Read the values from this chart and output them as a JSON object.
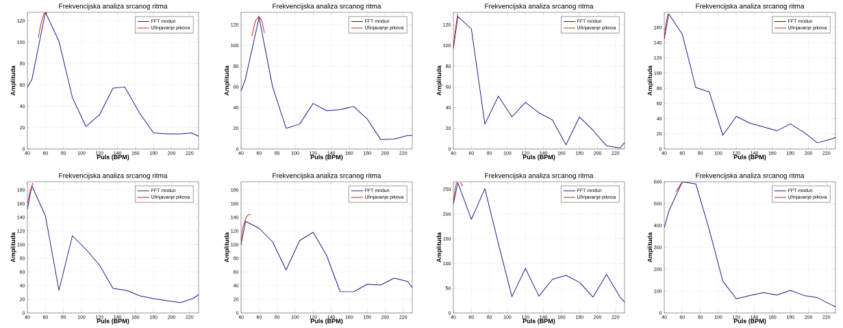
{
  "chart_data": [
    {
      "type": "line",
      "title": "Frekvencijska analiza srcanog ritma",
      "xlabel": "Puls (BPM)",
      "ylabel": "Amplituda",
      "xlim": [
        40,
        230
      ],
      "ylim": [
        0,
        128
      ],
      "xticks": [
        40,
        60,
        80,
        100,
        120,
        140,
        160,
        180,
        200,
        220
      ],
      "yticks": [
        0,
        20,
        40,
        60,
        80,
        100,
        120
      ],
      "grid": true,
      "legend": "top right",
      "series": [
        {
          "name": "FFT moduo",
          "color": "#1a1a8c",
          "x": [
            40,
            45,
            60,
            75,
            90,
            105,
            120,
            135,
            148,
            165,
            180,
            195,
            210,
            222,
            230
          ],
          "values": [
            58,
            65,
            128,
            101,
            48,
            21,
            32,
            57,
            58,
            33,
            15,
            14,
            14,
            15,
            12
          ]
        },
        {
          "name": "Ufinjavanje pikova",
          "color": "#cc2020",
          "x": [
            52,
            55,
            58,
            60,
            62
          ],
          "values": [
            104,
            117,
            126,
            128,
            127
          ]
        }
      ]
    },
    {
      "type": "line",
      "title": "Frekvencijska analiza srcanog ritma",
      "xlabel": "Puls (BPM)",
      "ylabel": "Amplituda",
      "xlim": [
        40,
        230
      ],
      "ylim": [
        0,
        132
      ],
      "xticks": [
        40,
        60,
        80,
        100,
        120,
        140,
        160,
        180,
        200,
        220
      ],
      "yticks": [
        0,
        20,
        40,
        60,
        80,
        100,
        120
      ],
      "grid": true,
      "legend": "top right",
      "series": [
        {
          "name": "FFT moduo",
          "color": "#1a1a8c",
          "x": [
            40,
            45,
            60,
            75,
            90,
            105,
            120,
            135,
            150,
            165,
            180,
            195,
            210,
            225,
            230
          ],
          "values": [
            56,
            68,
            127,
            60,
            20,
            24,
            44,
            37,
            38,
            41,
            29,
            9,
            9.5,
            13,
            13
          ]
        },
        {
          "name": "Ufinjavanje pikova",
          "color": "#cc2020",
          "x": [
            52,
            56,
            60,
            63,
            66
          ],
          "values": [
            109,
            124,
            128,
            124,
            112
          ]
        }
      ]
    },
    {
      "type": "line",
      "title": "Frekvencijska analiza srcanog ritma",
      "xlabel": "Puls (BPM)",
      "ylabel": "Amplituda",
      "xlim": [
        40,
        230
      ],
      "ylim": [
        0,
        132
      ],
      "xticks": [
        40,
        60,
        80,
        100,
        120,
        140,
        160,
        180,
        200,
        220
      ],
      "yticks": [
        0,
        20,
        40,
        60,
        80,
        100,
        120
      ],
      "grid": true,
      "legend": "top right",
      "series": [
        {
          "name": "FFT moduo",
          "color": "#1a1a8c",
          "x": [
            40,
            45,
            60,
            75,
            90,
            105,
            120,
            135,
            150,
            165,
            180,
            195,
            210,
            225,
            230
          ],
          "values": [
            97,
            128,
            116,
            24,
            51,
            31,
            45,
            35,
            28,
            4,
            31,
            18,
            3,
            1,
            6
          ]
        },
        {
          "name": "Ufinjavanje pikova",
          "color": "#cc2020",
          "x": [
            40,
            42,
            44,
            45
          ],
          "values": [
            100,
            113,
            126,
            131
          ]
        }
      ]
    },
    {
      "type": "line",
      "title": "Frekvencijska analiza srcanog ritma",
      "xlabel": "Puls (BPM)",
      "ylabel": "Amplituda",
      "xlim": [
        40,
        230
      ],
      "ylim": [
        0,
        180
      ],
      "xticks": [
        40,
        60,
        80,
        100,
        120,
        140,
        160,
        180,
        200,
        220
      ],
      "yticks": [
        0,
        20,
        40,
        60,
        80,
        100,
        120,
        140,
        160
      ],
      "grid": true,
      "legend": "top right",
      "series": [
        {
          "name": "FFT moduo",
          "color": "#1a1a8c",
          "x": [
            40,
            45,
            60,
            75,
            90,
            105,
            120,
            135,
            150,
            165,
            180,
            195,
            210,
            225,
            230
          ],
          "values": [
            145,
            178,
            151,
            81,
            75,
            18,
            43,
            34,
            29,
            24,
            33,
            22,
            8,
            13,
            15
          ]
        },
        {
          "name": "Ufinjavanje pikova",
          "color": "#cc2020",
          "x": [
            40,
            42,
            44
          ],
          "values": [
            148,
            165,
            178
          ]
        }
      ]
    },
    {
      "type": "line",
      "title": "Frekvencijska analiza srcanog ritma",
      "xlabel": "Puls (BPM)",
      "ylabel": "Amplituda",
      "xlim": [
        40,
        230
      ],
      "ylim": [
        0,
        192
      ],
      "xticks": [
        40,
        60,
        80,
        100,
        120,
        140,
        160,
        180,
        200,
        220
      ],
      "yticks": [
        0,
        20,
        40,
        60,
        80,
        100,
        120,
        140,
        160,
        180
      ],
      "grid": true,
      "legend": "top right",
      "series": [
        {
          "name": "FFT moduo",
          "color": "#1a1a8c",
          "x": [
            40,
            45,
            60,
            75,
            90,
            105,
            120,
            135,
            150,
            165,
            180,
            195,
            210,
            225,
            230
          ],
          "values": [
            152,
            186,
            142,
            33,
            113,
            93,
            70,
            36,
            33,
            25,
            21,
            18,
            15,
            22,
            27
          ]
        },
        {
          "name": "Ufinjavanje pikova",
          "color": "#cc2020",
          "x": [
            40,
            43,
            46
          ],
          "values": [
            160,
            178,
            190
          ]
        }
      ]
    },
    {
      "type": "line",
      "title": "Frekvencijska analiza srcanog ritma",
      "xlabel": "Puls (BPM)",
      "ylabel": "Amplituda",
      "xlim": [
        40,
        230
      ],
      "ylim": [
        0,
        192
      ],
      "xticks": [
        40,
        60,
        80,
        100,
        120,
        140,
        160,
        180,
        200,
        220
      ],
      "yticks": [
        0,
        20,
        40,
        60,
        80,
        100,
        120,
        140,
        160,
        180
      ],
      "grid": true,
      "legend": "top right",
      "series": [
        {
          "name": "FFT moduo",
          "color": "#1a1a8c",
          "x": [
            40,
            45,
            60,
            75,
            90,
            105,
            120,
            135,
            150,
            165,
            180,
            195,
            210,
            225,
            230
          ],
          "values": [
            100,
            134,
            124,
            104,
            63,
            106,
            118,
            84,
            31,
            31,
            42,
            41,
            51,
            46,
            37
          ]
        },
        {
          "name": "Ufinjavanje pikova",
          "color": "#cc2020",
          "x": [
            40,
            42,
            45,
            48,
            51
          ],
          "values": [
            105,
            125,
            138,
            144,
            144
          ]
        }
      ]
    },
    {
      "type": "line",
      "title": "Frekvencijska analiza srcanog ritma",
      "xlabel": "Puls (BPM)",
      "ylabel": "Amplituda",
      "xlim": [
        40,
        230
      ],
      "ylim": [
        0,
        265
      ],
      "xticks": [
        40,
        60,
        80,
        100,
        120,
        140,
        160,
        180,
        200,
        220
      ],
      "yticks": [
        0,
        50,
        100,
        150,
        200,
        250
      ],
      "grid": true,
      "legend": "top right",
      "series": [
        {
          "name": "FFT moduo",
          "color": "#1a1a8c",
          "x": [
            40,
            45,
            60,
            75,
            90,
            105,
            120,
            135,
            150,
            165,
            180,
            195,
            210,
            225,
            230
          ],
          "values": [
            220,
            263,
            189,
            251,
            140,
            33,
            90,
            34,
            68,
            76,
            62,
            32,
            78,
            32,
            22
          ]
        },
        {
          "name": "Ufinjavanje pikova",
          "color": "#cc2020",
          "x": [
            40,
            42,
            43.5,
            46,
            48,
            50
          ],
          "values": [
            225,
            250,
            264,
            null,
            264,
            256
          ]
        }
      ]
    },
    {
      "type": "line",
      "title": "Frekvencijska analiza srcanog ritma",
      "xlabel": "Puls (BPM)",
      "ylabel": "Amplituda",
      "xlim": [
        40,
        230
      ],
      "ylim": [
        0,
        600
      ],
      "xticks": [
        40,
        60,
        80,
        100,
        120,
        140,
        160,
        180,
        200,
        220
      ],
      "yticks": [
        0,
        100,
        200,
        300,
        400,
        500,
        600
      ],
      "grid": true,
      "legend": "top right",
      "series": [
        {
          "name": "FFT moduo",
          "color": "#1a1a8c",
          "x": [
            40,
            45,
            60,
            75,
            90,
            105,
            120,
            135,
            150,
            165,
            180,
            195,
            210,
            225,
            230
          ],
          "values": [
            390,
            465,
            600,
            590,
            380,
            145,
            65,
            80,
            93,
            82,
            103,
            80,
            70,
            38,
            28
          ]
        },
        {
          "name": "Ufinjavanje pikova",
          "color": "#cc2020",
          "x": [
            53,
            60
          ],
          "values": [
            555,
            600
          ]
        }
      ]
    }
  ]
}
